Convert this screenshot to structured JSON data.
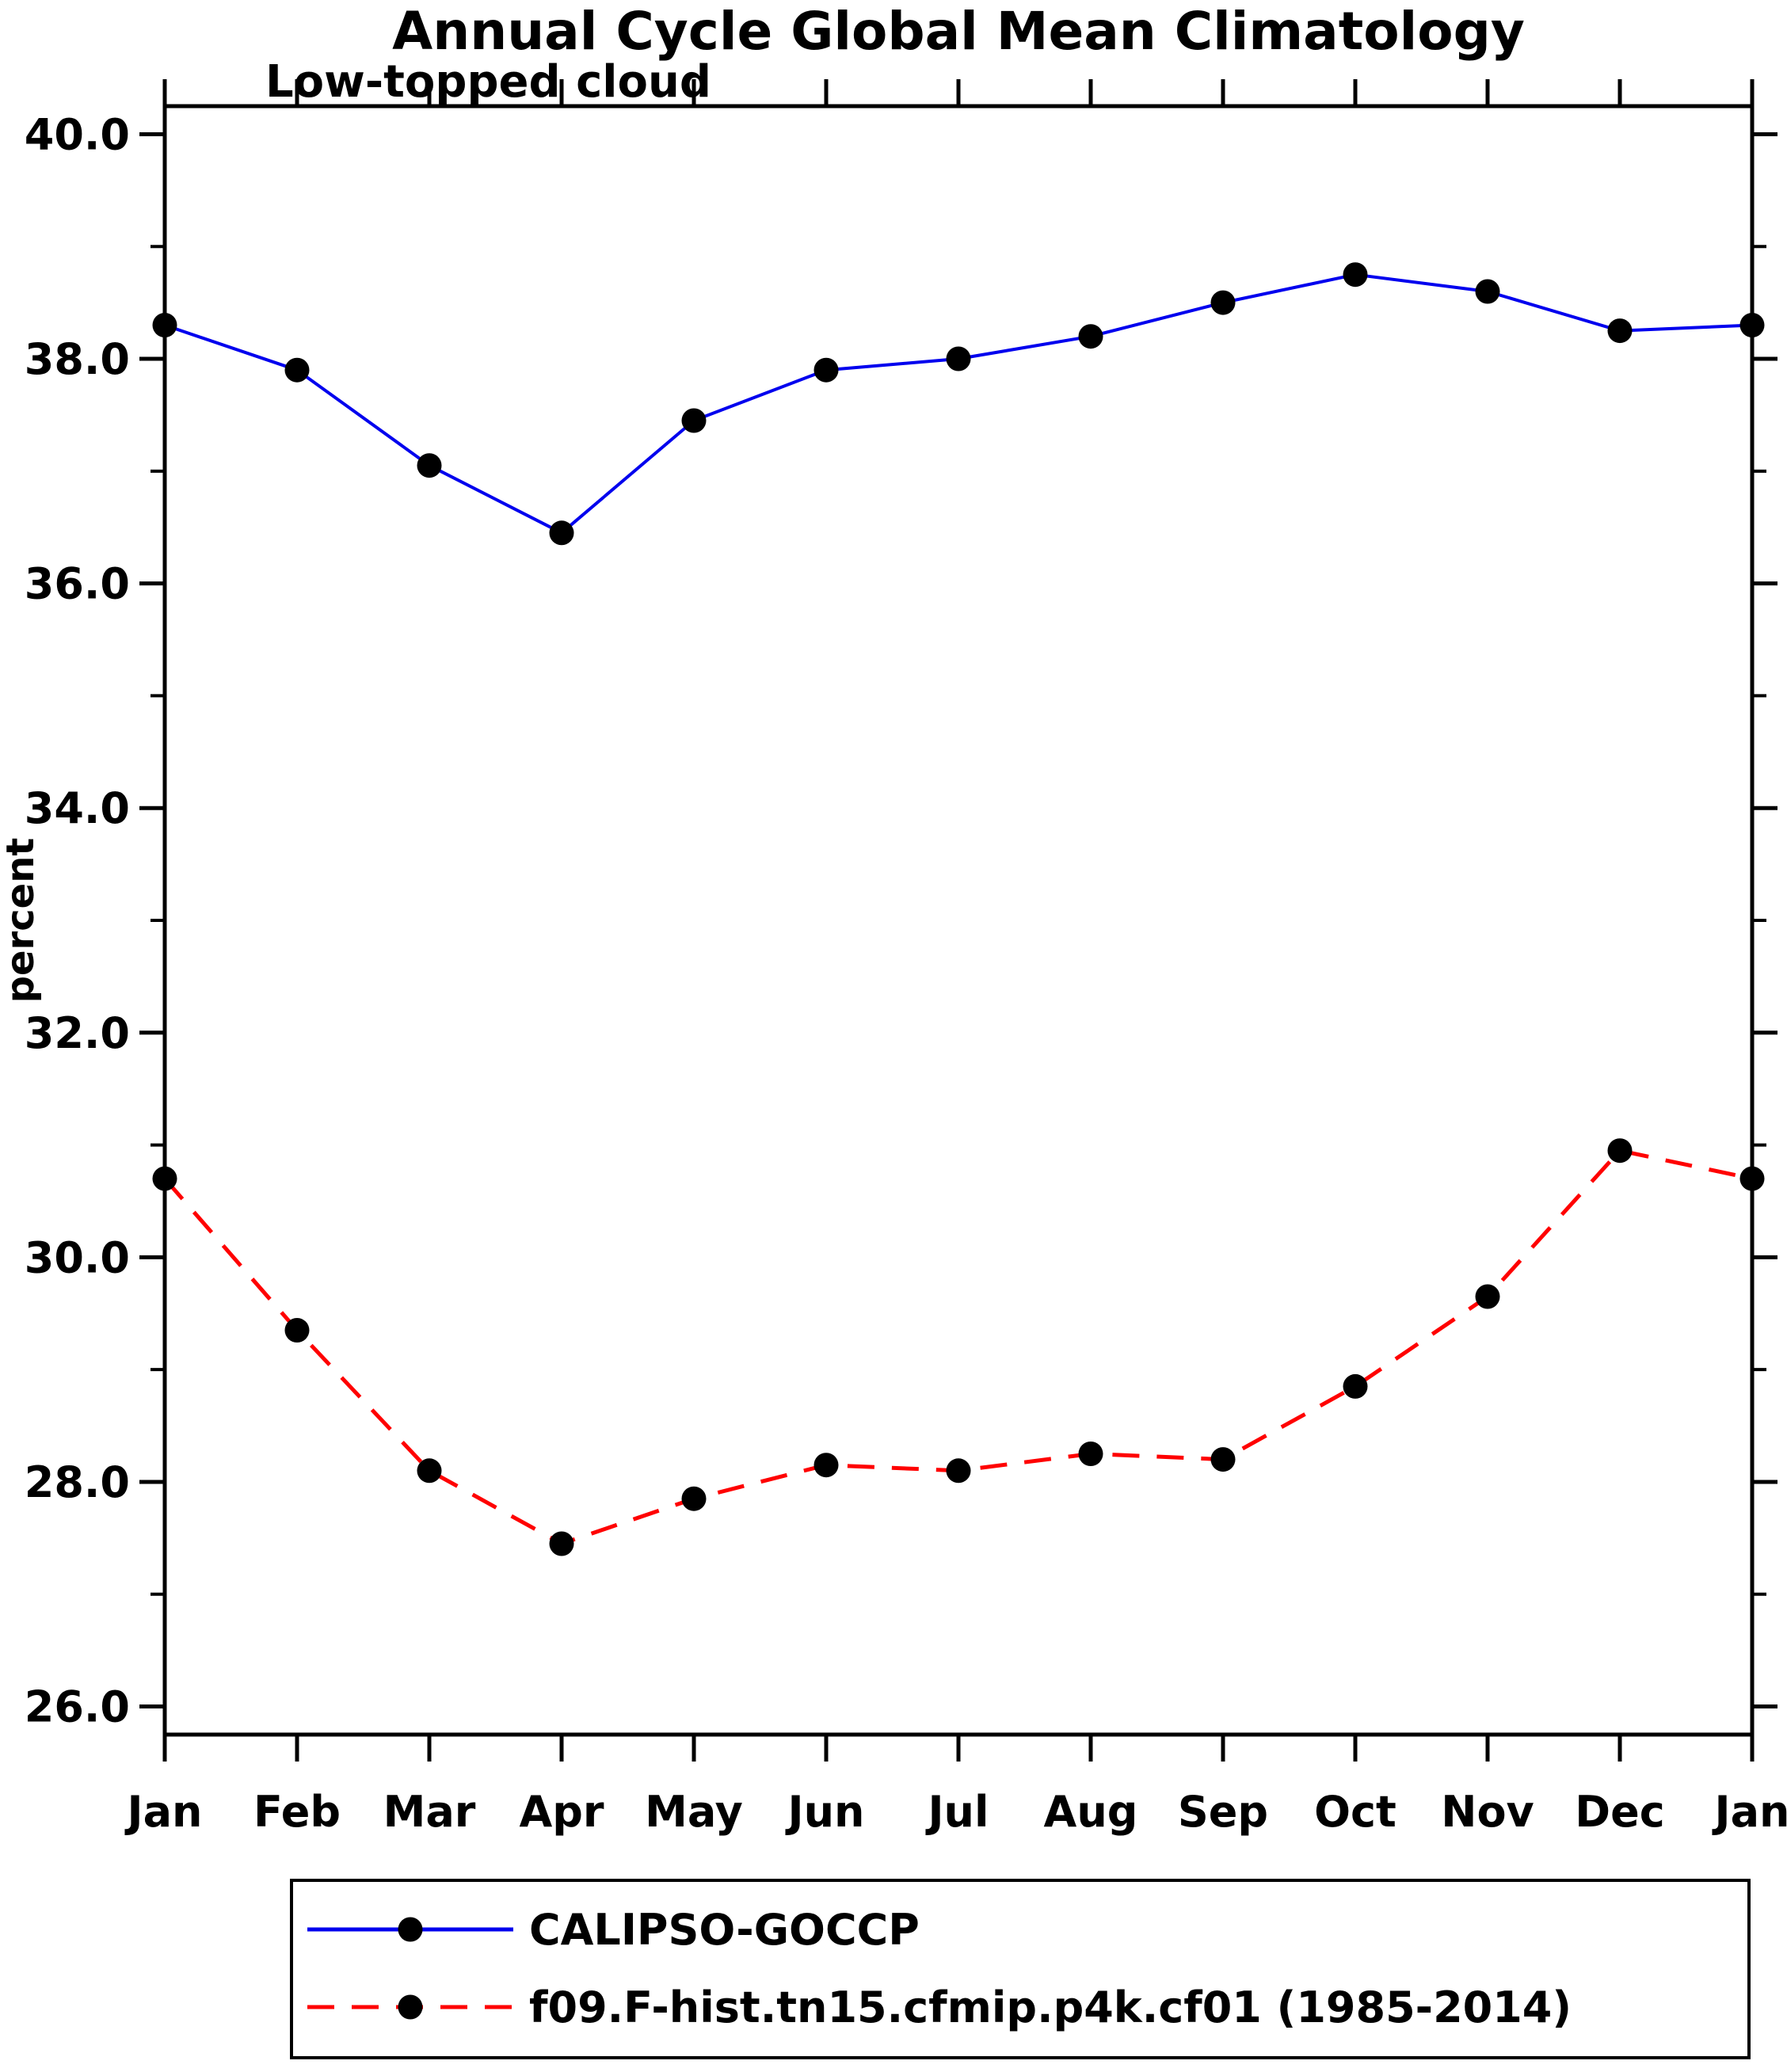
{
  "chart_data": {
    "type": "line",
    "title": "Annual Cycle Global Mean Climatology",
    "subtitle": "Low-topped cloud",
    "ylabel": "percent",
    "categories": [
      "Jan",
      "Feb",
      "Mar",
      "Apr",
      "May",
      "Jun",
      "Jul",
      "Aug",
      "Sep",
      "Oct",
      "Nov",
      "Dec",
      "Jan"
    ],
    "ylim": [
      25.75,
      40.25
    ],
    "yticks_major": [
      26.0,
      28.0,
      30.0,
      32.0,
      34.0,
      36.0,
      38.0,
      40.0
    ],
    "yticks_minor": [
      27.0,
      29.0,
      31.0,
      33.0,
      35.0,
      37.0,
      39.0
    ],
    "grid": "off",
    "legend_position": "bottom",
    "marker": {
      "shape": "circle",
      "color": "#000000",
      "radius": 15.5
    },
    "frame_color": "#000000",
    "series": [
      {
        "name": "CALIPSO-GOCCP",
        "color": "#0000ee",
        "style": "solid",
        "values": [
          38.3,
          37.9,
          37.05,
          36.45,
          37.45,
          37.9,
          38.0,
          38.2,
          38.5,
          38.75,
          38.6,
          38.25,
          38.3
        ]
      },
      {
        "name": "f09.F-hist.tn15.cfmip.p4k.cf01 (1985-2014)",
        "color": "#ff0000",
        "style": "dashed",
        "values": [
          30.7,
          29.35,
          28.1,
          27.45,
          27.85,
          28.15,
          28.1,
          28.25,
          28.2,
          28.85,
          29.65,
          30.95,
          30.7
        ]
      }
    ]
  }
}
